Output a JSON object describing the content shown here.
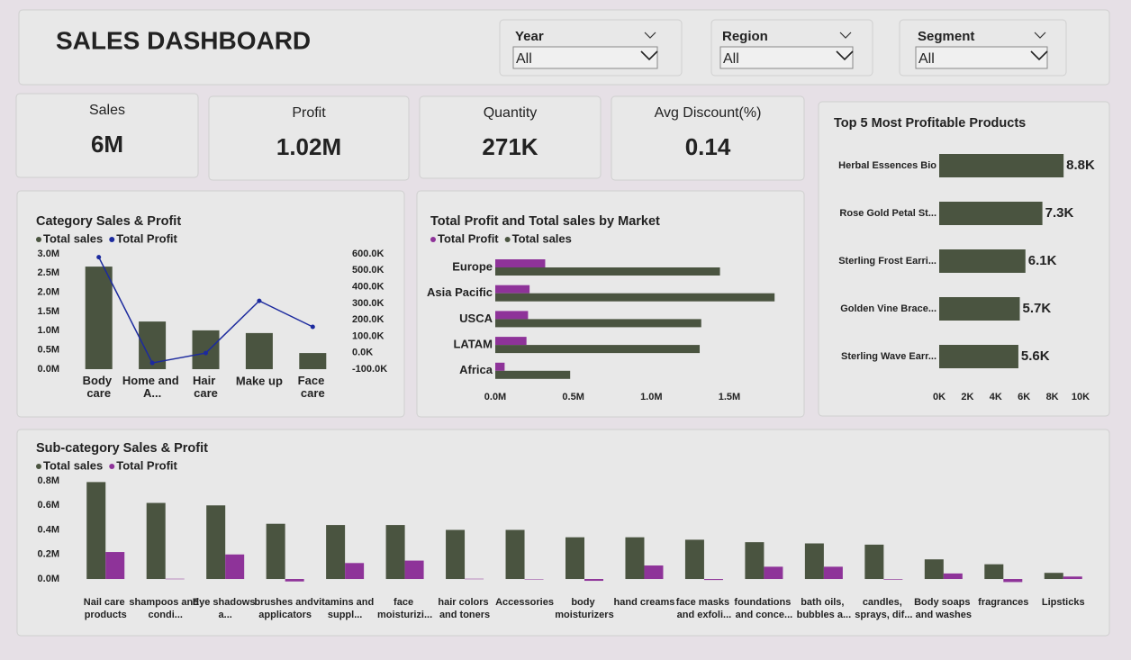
{
  "header": {
    "title": "SALES DASHBOARD"
  },
  "filters": [
    {
      "label": "Year",
      "value": "All"
    },
    {
      "label": "Region",
      "value": "All"
    },
    {
      "label": "Segment",
      "value": "All"
    }
  ],
  "kpis": [
    {
      "label": "Sales",
      "value": "6M"
    },
    {
      "label": "Profit",
      "value": "1.02M"
    },
    {
      "label": "Quantity",
      "value": "271K"
    },
    {
      "label": "Avg Discount(%)",
      "value": "0.14"
    }
  ],
  "chart_data": [
    {
      "type": "combo",
      "title": "Category Sales & Profit",
      "categories": [
        "Body care",
        "Home and A...",
        "Hair care",
        "Make up",
        "Face care"
      ],
      "series": [
        {
          "name": "Total sales",
          "color": "#4a5440",
          "values": [
            2670000,
            1240000,
            1010000,
            940000,
            420000
          ]
        },
        {
          "name": "Total Profit",
          "color": "#1c2a9e",
          "axis": "y2",
          "values": [
            580000,
            -62000,
            -2000,
            315000,
            157000
          ]
        }
      ],
      "ylim": [
        0,
        3000000
      ],
      "yticks": [
        {
          "value": 0,
          "label": "0.0M"
        },
        {
          "value": 500000,
          "label": "0.5M"
        },
        {
          "value": 1000000,
          "label": "1.0M"
        },
        {
          "value": 1500000,
          "label": "1.5M"
        },
        {
          "value": 2000000,
          "label": "2.0M"
        },
        {
          "value": 2500000,
          "label": "2.5M"
        },
        {
          "value": 3000000,
          "label": "3.0M"
        }
      ],
      "y2lim": [
        -100000,
        600000
      ],
      "y2ticks": [
        {
          "value": -100000,
          "label": "-100.0K"
        },
        {
          "value": 0,
          "label": "0.0K"
        },
        {
          "value": 100000,
          "label": "100.0K"
        },
        {
          "value": 200000,
          "label": "200.0K"
        },
        {
          "value": 300000,
          "label": "300.0K"
        },
        {
          "value": 400000,
          "label": "400.0K"
        },
        {
          "value": 500000,
          "label": "500.0K"
        },
        {
          "value": 600000,
          "label": "600.0K"
        }
      ]
    },
    {
      "type": "hbar",
      "title": "Total Profit and Total sales by Market",
      "categories": [
        "Europe",
        "Asia Pacific",
        "USCA",
        "LATAM",
        "Africa"
      ],
      "series": [
        {
          "name": "Total Profit",
          "color": "#8e3399",
          "values": [
            320000,
            220000,
            210000,
            200000,
            60000
          ]
        },
        {
          "name": "Total sales",
          "color": "#4a5440",
          "values": [
            1440000,
            1790000,
            1320000,
            1310000,
            480000
          ]
        }
      ],
      "xlim": [
        0,
        1850000
      ],
      "xticks": [
        {
          "value": 0,
          "label": "0.0M"
        },
        {
          "value": 500000,
          "label": "0.5M"
        },
        {
          "value": 1000000,
          "label": "1.0M"
        },
        {
          "value": 1500000,
          "label": "1.5M"
        }
      ]
    },
    {
      "type": "hbar",
      "title": "Top 5 Most Profitable Products",
      "categories": [
        "Herbal Essences Bio",
        "Rose Gold Petal St...",
        "Sterling Frost Earri...",
        "Golden Vine Brace...",
        "Sterling Wave Earr..."
      ],
      "values": [
        8800,
        7300,
        6100,
        5700,
        5600
      ],
      "value_labels": [
        "8.8K",
        "7.3K",
        "6.1K",
        "5.7K",
        "5.6K"
      ],
      "color": "#4a5440",
      "xlim": [
        0,
        10000
      ],
      "xticks": [
        {
          "value": 0,
          "label": "0K"
        },
        {
          "value": 2000,
          "label": "2K"
        },
        {
          "value": 4000,
          "label": "4K"
        },
        {
          "value": 6000,
          "label": "6K"
        },
        {
          "value": 8000,
          "label": "8K"
        },
        {
          "value": 10000,
          "label": "10K"
        }
      ]
    },
    {
      "type": "bar",
      "title": "Sub-category Sales & Profit",
      "categories": [
        "Nail care products",
        "shampoos and condi...",
        "Eye shadows a...",
        "brushes and applicators",
        "vitamins and suppl...",
        "face moisturizi...",
        "hair colors and toners",
        "Accessories",
        "body moisturizers",
        "hand creams",
        "face masks and exfoli...",
        "foundations and conce...",
        "bath oils, bubbles a...",
        "candles, sprays, dif...",
        "Body soaps and washes",
        "fragrances",
        "Lipsticks"
      ],
      "series": [
        {
          "name": "Total sales",
          "color": "#4a5440",
          "values": [
            790000,
            620000,
            600000,
            450000,
            440000,
            440000,
            400000,
            400000,
            340000,
            340000,
            320000,
            300000,
            290000,
            280000,
            160000,
            120000,
            50000
          ]
        },
        {
          "name": "Total Profit",
          "color": "#8e3399",
          "values": [
            220000,
            2000,
            200000,
            -20000,
            130000,
            150000,
            2000,
            -3000,
            -15000,
            110000,
            -8000,
            100000,
            100000,
            -5000,
            45000,
            -25000,
            20000
          ]
        }
      ],
      "ylim": [
        -60000,
        820000
      ],
      "yticks": [
        {
          "value": 0,
          "label": "0.0M"
        },
        {
          "value": 200000,
          "label": "0.2M"
        },
        {
          "value": 400000,
          "label": "0.4M"
        },
        {
          "value": 600000,
          "label": "0.6M"
        },
        {
          "value": 800000,
          "label": "0.8M"
        }
      ]
    }
  ]
}
